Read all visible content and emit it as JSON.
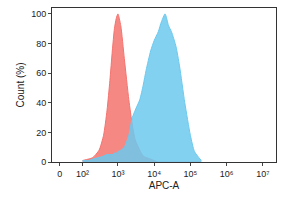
{
  "chart_data": {
    "type": "area",
    "x_label": "APC-A",
    "y_label": "Count (%)",
    "x": [
      100,
      150,
      200,
      300,
      400,
      500,
      600,
      700,
      800,
      900,
      1000,
      1200,
      1500,
      2000,
      2500,
      3000,
      4000,
      5000,
      6000,
      8000,
      10000,
      13000,
      16000,
      20000,
      25000,
      30000,
      40000,
      50000,
      70000,
      100000,
      130000,
      200000
    ],
    "series": [
      {
        "color": "#f4736e",
        "values": [
          1,
          2,
          3,
          8,
          18,
          35,
          55,
          75,
          90,
          97,
          100,
          92,
          70,
          42,
          25,
          15,
          8,
          4,
          3,
          2,
          1,
          0,
          0,
          0,
          0,
          0,
          0,
          0,
          0,
          0,
          0,
          0
        ]
      },
      {
        "color": "#6cc9ee",
        "values": [
          1,
          1,
          2,
          3,
          4,
          5,
          5,
          5,
          6,
          6,
          7,
          8,
          10,
          18,
          30,
          35,
          42,
          52,
          62,
          75,
          82,
          88,
          95,
          100,
          92,
          88,
          78,
          65,
          40,
          18,
          7,
          1
        ]
      }
    ],
    "xlim": [
      -26,
      23000000
    ],
    "xticks": [
      0,
      {
        "value": 100,
        "label": "10²"
      },
      {
        "value": 1000,
        "label": "10³"
      },
      {
        "value": 10000,
        "label": "10⁴"
      },
      {
        "value": 100000,
        "label": "10⁵"
      },
      {
        "value": 1000000,
        "label": "10⁶"
      },
      {
        "value": 10000000,
        "label": "10⁷"
      }
    ],
    "ylim": [
      0,
      104
    ],
    "yticks": [
      0,
      20,
      40,
      60,
      80,
      100
    ],
    "grid": false
  }
}
